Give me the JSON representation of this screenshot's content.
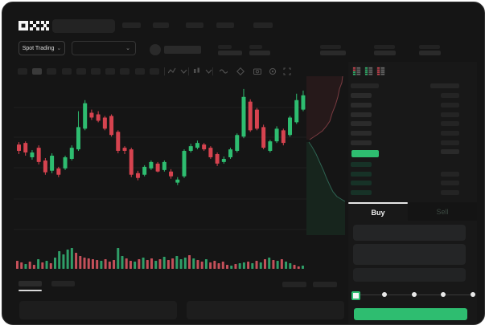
{
  "app": {
    "name": "OKX Trading",
    "logo_text": "OKX"
  },
  "colors": {
    "window_bg": "#151515",
    "panel_bg": "#191919",
    "skeleton": "#242424",
    "skeleton_bright": "#3a3a3a",
    "up_green": "#2ebd70",
    "down_red": "#d6434f",
    "bid_row_tint": "#16someone",
    "accent_green": "#2ebd70",
    "tab_underline": "#e6e6e6",
    "icon_gray": "#4f4f4f"
  },
  "header": {
    "logo": "OKX",
    "search_placeholder": "",
    "nav_placeholder_count": 5,
    "market_selector_label": "Spot Trading",
    "chevron_glyph": "⌄",
    "stat_placeholder_count": 5
  },
  "toolbar": {
    "timeframe_placeholder_count": 10,
    "active_timeframe_index": 1,
    "icons": [
      "indicators-icon",
      "chevron-down-icon",
      "chart-type-icon",
      "chevron-down-icon",
      "line-tool-icon",
      "draw-icon",
      "camera-icon",
      "settings-icon",
      "fullscreen-icon"
    ]
  },
  "orderbook": {
    "view_icons": [
      "book-combined-icon",
      "book-bids-icon",
      "book-asks-icon"
    ],
    "header_placeholders": 2,
    "asks": [
      {
        "amount_bar": true
      },
      {
        "amount_bar": true
      },
      {
        "amount_bar": true
      },
      {
        "amount_bar": true
      },
      {
        "amount_bar": true
      },
      {
        "amount_bar": true
      }
    ],
    "last_price_row": {
      "highlight": true,
      "amount_bar": true
    },
    "bids": [
      {
        "amount_bar": false
      },
      {
        "amount_bar": true
      },
      {
        "amount_bar": true
      },
      {
        "amount_bar": true
      }
    ]
  },
  "trade_panel": {
    "tabs": {
      "buy_label": "Buy",
      "sell_label": "Sell",
      "active": "buy"
    },
    "input_placeholder_count": 3,
    "slider": {
      "stops": 5,
      "active_stop": 0
    },
    "submit_button_label": ""
  },
  "bottom_bar": {
    "left_tab_placeholders": 2,
    "active_left_tab": 0,
    "right_tab_placeholders": 2,
    "content_placeholder_count": 2
  },
  "chart_data": [
    {
      "type": "candlestick",
      "title": "",
      "xlabel": "",
      "ylabel": "",
      "scale_note": "normalized price 0-100, 44 bars left to right",
      "candles_ohlc": [
        [
          57,
          58.5,
          51,
          53
        ],
        [
          58,
          59,
          50,
          52
        ],
        [
          49,
          53.5,
          47.5,
          52
        ],
        [
          55,
          56.5,
          44.5,
          46
        ],
        [
          47,
          48.5,
          38,
          39.5
        ],
        [
          40.5,
          51.5,
          39,
          50
        ],
        [
          42,
          43,
          36.5,
          38
        ],
        [
          42,
          50,
          41,
          49
        ],
        [
          48,
          56.5,
          47,
          55
        ],
        [
          54,
          78,
          53,
          68
        ],
        [
          67,
          85,
          66,
          83
        ],
        [
          77,
          79,
          72.5,
          74
        ],
        [
          76,
          78,
          71,
          72
        ],
        [
          74,
          75,
          66,
          67
        ],
        [
          75,
          76,
          62,
          63
        ],
        [
          65,
          66,
          51.5,
          53
        ],
        [
          55,
          56,
          51,
          53
        ],
        [
          54,
          55,
          36.5,
          38
        ],
        [
          39,
          40.5,
          34.5,
          36
        ],
        [
          38,
          44,
          37,
          43
        ],
        [
          42,
          47,
          41,
          46
        ],
        [
          45,
          46,
          39.5,
          40
        ],
        [
          41,
          47,
          40,
          46
        ],
        [
          40,
          41.5,
          35.5,
          37
        ],
        [
          33,
          36.5,
          31.5,
          35
        ],
        [
          37,
          54,
          36,
          53
        ],
        [
          53,
          57.5,
          52,
          56
        ],
        [
          55,
          59.5,
          54,
          58
        ],
        [
          57,
          58,
          53,
          54
        ],
        [
          55,
          56,
          48,
          49
        ],
        [
          51,
          52,
          43.5,
          45
        ],
        [
          46,
          49.5,
          45,
          48
        ],
        [
          49,
          55,
          48,
          54
        ],
        [
          53,
          64,
          52,
          63
        ],
        [
          62,
          92,
          61,
          87
        ],
        [
          84,
          85.5,
          65,
          66
        ],
        [
          79,
          80,
          66,
          67
        ],
        [
          68,
          69.5,
          54,
          55
        ],
        [
          53,
          60,
          52,
          59
        ],
        [
          59,
          68.5,
          58,
          67
        ],
        [
          66,
          67,
          56.5,
          58
        ],
        [
          63,
          75,
          62,
          74
        ],
        [
          71,
          89,
          70,
          85
        ],
        [
          79,
          91,
          78,
          88
        ]
      ],
      "grid": true,
      "legend": false
    },
    {
      "type": "bar",
      "name": "volume",
      "values": [
        10,
        8,
        6,
        9,
        5,
        12,
        8,
        10,
        7,
        14,
        22,
        18,
        24,
        26,
        20,
        16,
        14,
        13,
        12,
        11,
        10,
        12,
        9,
        11,
        26,
        16,
        13,
        10,
        9,
        12,
        14,
        11,
        13,
        10,
        12,
        15,
        11,
        13,
        16,
        12,
        14,
        17,
        13,
        11,
        9,
        12,
        8,
        10,
        7,
        9,
        5,
        4,
        6,
        7,
        8,
        9,
        7,
        10,
        8,
        12,
        14,
        11,
        10,
        12,
        9,
        7,
        5,
        3,
        4
      ],
      "sides": [
        "r",
        "r",
        "g",
        "r",
        "r",
        "g",
        "r",
        "g",
        "r",
        "g",
        "g",
        "g",
        "g",
        "g",
        "r",
        "r",
        "r",
        "r",
        "r",
        "r",
        "g",
        "r",
        "r",
        "r",
        "g",
        "g",
        "r",
        "r",
        "g",
        "r",
        "g",
        "r",
        "r",
        "g",
        "r",
        "g",
        "r",
        "r",
        "g",
        "g",
        "g",
        "r",
        "g",
        "r",
        "r",
        "g",
        "r",
        "r",
        "r",
        "r",
        "r",
        "g",
        "r",
        "g",
        "g",
        "r",
        "g",
        "r",
        "g",
        "r",
        "g",
        "r",
        "g",
        "r",
        "g",
        "g",
        "r",
        "r",
        "g"
      ]
    },
    {
      "type": "area",
      "name": "depth",
      "asks_curve": [
        [
          45,
          0
        ],
        [
          44,
          8
        ],
        [
          41,
          16
        ],
        [
          39,
          26
        ],
        [
          36,
          36
        ],
        [
          32,
          46
        ],
        [
          29,
          56
        ],
        [
          25,
          62
        ],
        [
          20,
          68
        ],
        [
          13,
          73
        ],
        [
          7,
          77
        ],
        [
          4,
          79
        ]
      ],
      "bids_curve": [
        [
          3,
          82
        ],
        [
          7,
          88
        ],
        [
          12,
          97
        ],
        [
          16,
          106
        ],
        [
          21,
          117
        ],
        [
          25,
          127
        ],
        [
          30,
          138
        ],
        [
          33,
          144
        ],
        [
          38,
          150
        ],
        [
          43,
          153
        ],
        [
          48,
          156
        ]
      ]
    }
  ]
}
